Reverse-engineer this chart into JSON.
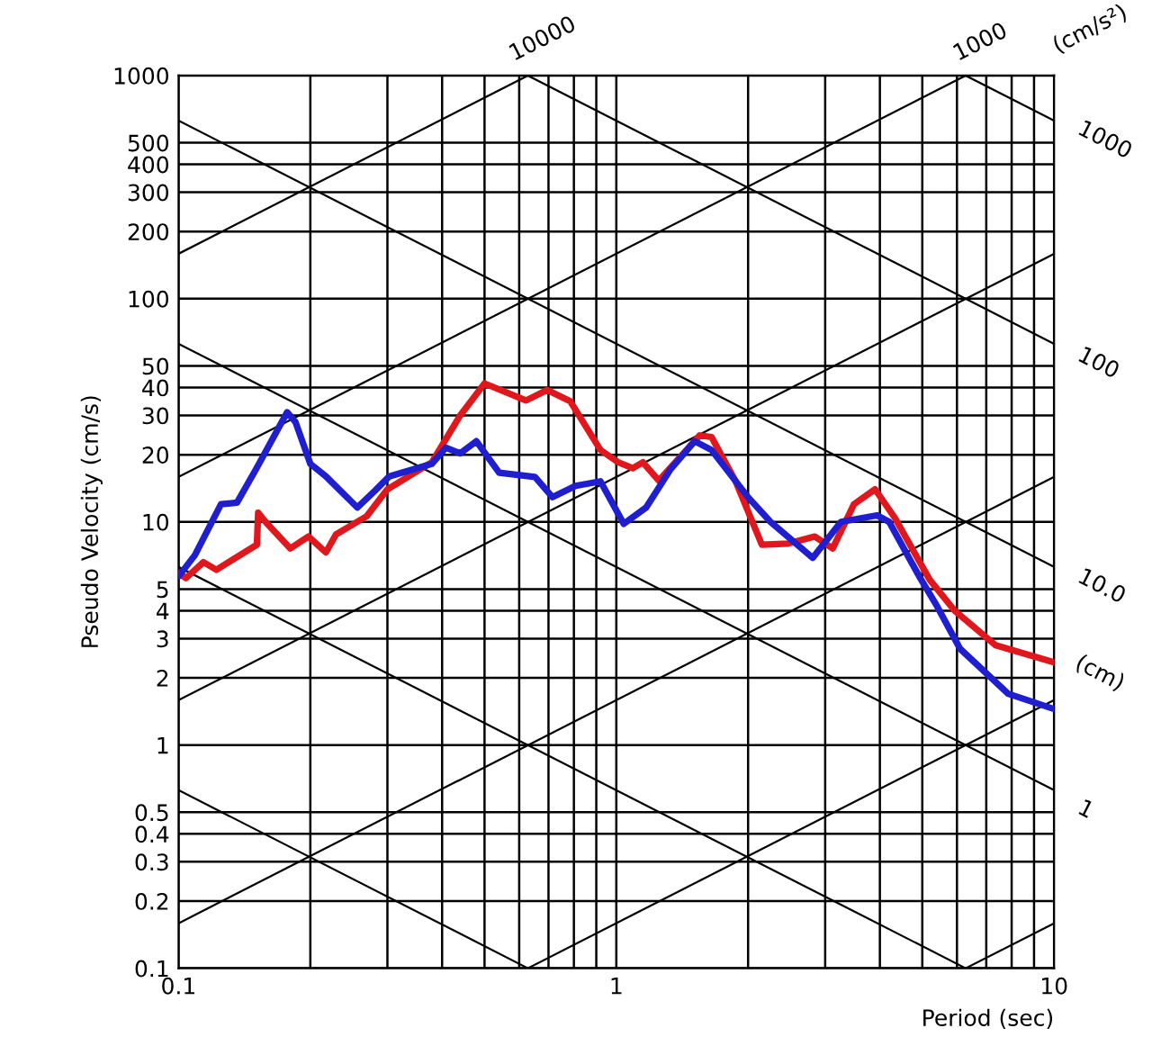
{
  "chart_data": {
    "type": "line",
    "xlabel": "Period (sec)",
    "ylabel": "Pseudo Velocity (cm/s)",
    "log": "xy",
    "grid": true,
    "line_style": "solid",
    "xlim": [
      0.1,
      10
    ],
    "ylim": [
      0.1,
      1000
    ],
    "xticks": [
      0.1,
      {
        "value": 0.2,
        "label": null
      },
      {
        "value": 0.3,
        "label": null
      },
      {
        "value": 0.4,
        "label": null
      },
      {
        "value": 0.5,
        "label": null
      },
      {
        "value": 0.6,
        "label": null
      },
      {
        "value": 0.7,
        "label": null
      },
      {
        "value": 0.8,
        "label": null
      },
      {
        "value": 0.9,
        "label": null
      },
      1,
      {
        "value": 2,
        "label": null
      },
      {
        "value": 3,
        "label": null
      },
      {
        "value": 4,
        "label": null
      },
      {
        "value": 5,
        "label": null
      },
      {
        "value": 6,
        "label": null
      },
      {
        "value": 7,
        "label": null
      },
      {
        "value": 8,
        "label": null
      },
      {
        "value": 9,
        "label": null
      },
      10
    ],
    "yticks": [
      0.1,
      0.2,
      0.3,
      0.4,
      0.5,
      1,
      2,
      3,
      4,
      5,
      10,
      20,
      30,
      40,
      50,
      100,
      200,
      300,
      400,
      500,
      1000
    ],
    "series": [
      {
        "color": "#000000",
        "x": [
          0.1,
          0.628
        ],
        "values": [
          159,
          1000
        ]
      },
      {
        "color": "#000000",
        "x": [
          0.1,
          6.28
        ],
        "values": [
          15.9,
          1000
        ]
      },
      {
        "color": "#000000",
        "x": [
          0.1,
          10
        ],
        "values": [
          1.59,
          159
        ]
      },
      {
        "color": "#000000",
        "x": [
          0.1,
          10
        ],
        "values": [
          0.159,
          15.9
        ]
      },
      {
        "color": "#000000",
        "x": [
          0.628,
          10
        ],
        "values": [
          0.1,
          1.59
        ]
      },
      {
        "color": "#000000",
        "x": [
          6.28,
          10
        ],
        "values": [
          0.1,
          0.159
        ]
      },
      {
        "color": "#000000",
        "x": [
          6.28,
          10
        ],
        "values": [
          1000,
          628
        ]
      },
      {
        "color": "#000000",
        "x": [
          0.628,
          10
        ],
        "values": [
          1000,
          62.8
        ]
      },
      {
        "color": "#000000",
        "x": [
          0.1,
          10
        ],
        "values": [
          628,
          6.28
        ]
      },
      {
        "color": "#000000",
        "x": [
          0.1,
          10
        ],
        "values": [
          62.8,
          0.628
        ]
      },
      {
        "color": "#000000",
        "x": [
          0.1,
          6.28
        ],
        "values": [
          6.28,
          0.1
        ]
      },
      {
        "color": "#000000",
        "x": [
          0.1,
          0.628
        ],
        "values": [
          0.628,
          0.1
        ]
      },
      {
        "color": "#e0181e",
        "x": [
          0.1,
          0.104,
          0.114,
          0.122,
          0.151,
          0.152,
          0.158,
          0.18,
          0.198,
          0.217,
          0.229,
          0.269,
          0.3,
          0.379,
          0.44,
          0.5,
          0.622,
          0.695,
          0.785,
          0.92,
          1.01,
          1.09,
          1.15,
          1.25,
          1.55,
          1.65,
          1.87,
          2.15,
          2.47,
          2.84,
          3.12,
          3.49,
          3.9,
          4.33,
          5.2,
          5.93,
          7.35,
          10
        ],
        "values": [
          5.9,
          5.6,
          6.6,
          6.1,
          7.9,
          11,
          10,
          7.6,
          8.6,
          7.3,
          8.8,
          10.6,
          14,
          18.5,
          30,
          41.7,
          35,
          39,
          34.7,
          21,
          18.5,
          17.4,
          18.5,
          15.3,
          24.4,
          24,
          15.3,
          7.9,
          8,
          8.6,
          7.6,
          12,
          14,
          10.4,
          5.5,
          4.0,
          2.8,
          2.35
        ]
      },
      {
        "color": "#1f1fd0",
        "x": [
          0.1,
          0.109,
          0.125,
          0.136,
          0.151,
          0.177,
          0.185,
          0.2,
          0.217,
          0.256,
          0.281,
          0.303,
          0.379,
          0.408,
          0.44,
          0.479,
          0.54,
          0.652,
          0.715,
          0.807,
          0.92,
          1.04,
          1.17,
          1.33,
          1.51,
          1.65,
          2.0,
          2.25,
          2.81,
          3.26,
          3.94,
          4.2,
          4.92,
          5.4,
          6.1,
          7.85,
          10
        ],
        "values": [
          5.7,
          7.1,
          12,
          12.2,
          17.5,
          31,
          28,
          18.2,
          16,
          11.6,
          13.8,
          16,
          18.2,
          21.5,
          20.3,
          23,
          16.6,
          15.9,
          12.9,
          14.5,
          15.2,
          9.8,
          11.6,
          17.2,
          23,
          21,
          12.9,
          10,
          6.9,
          10,
          10.7,
          10,
          5.7,
          4.2,
          2.7,
          1.7,
          1.45
        ]
      }
    ],
    "annotations": [
      {
        "text": "10000",
        "x": 0.628,
        "y": 1000
      },
      {
        "text": "1000",
        "x": 6.28,
        "y": 1000
      },
      "(cm/s²)",
      {
        "text": "1000",
        "x": 10,
        "y": 628
      },
      {
        "text": "100",
        "x": 10,
        "y": 62.8
      },
      {
        "text": "10.0",
        "x": 10,
        "y": 6.28
      },
      {
        "text": "1",
        "x": 10,
        "y": 0.628
      },
      "(cm)"
    ]
  }
}
